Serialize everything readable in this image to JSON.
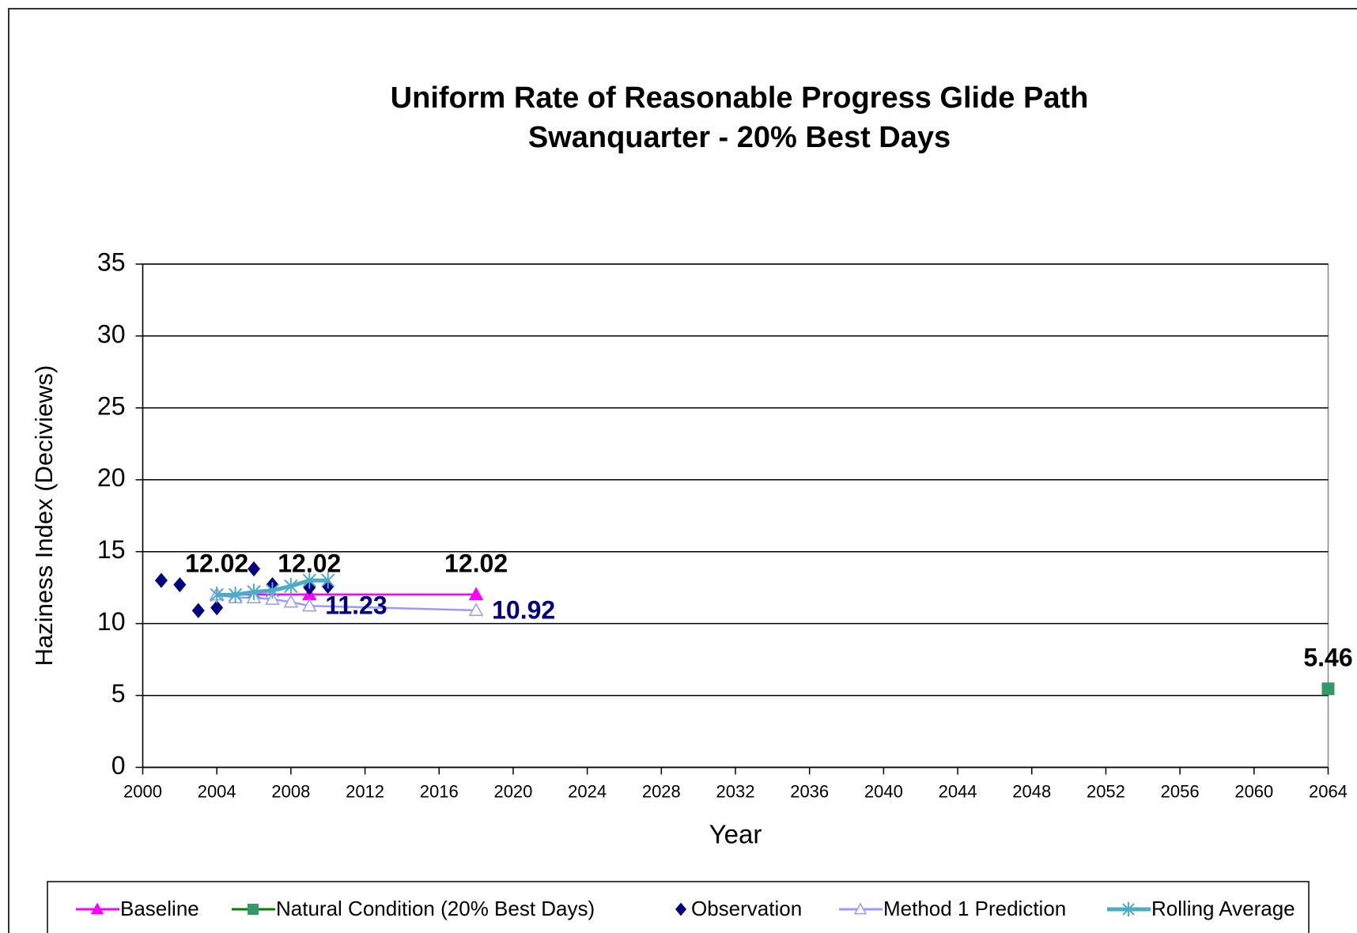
{
  "chart_data": {
    "type": "line",
    "title": [
      "Uniform Rate of Reasonable Progress Glide Path",
      "Swanquarter - 20% Best Days"
    ],
    "x_label": "Year",
    "y_label": "Haziness Index (Deciviews)",
    "xlim": [
      2000,
      2064
    ],
    "xticks": [
      2000,
      2004,
      2008,
      2012,
      2016,
      2020,
      2024,
      2028,
      2032,
      2036,
      2040,
      2044,
      2048,
      2052,
      2056,
      2060,
      2064
    ],
    "ylim": [
      0,
      35
    ],
    "yticks": [
      0,
      5,
      10,
      15,
      20,
      25,
      30,
      35
    ],
    "grid": true,
    "legend": "bottom",
    "series": [
      {
        "name": "Baseline",
        "color": "#ff00ff",
        "marker_color": "#ff00ff",
        "marker": "triangle",
        "line": true,
        "x": [
          2004,
          2009,
          2018
        ],
        "values": [
          12.02,
          12.02,
          12.02
        ],
        "value_labels": [
          "12.02",
          "12.02",
          "12.02"
        ],
        "label_color": "#000000",
        "label_position": "above"
      },
      {
        "name": "Natural Condition (20% Best Days)",
        "color": "#008000",
        "marker_color": "#339966",
        "marker": "square",
        "line": true,
        "x": [
          2064
        ],
        "values": [
          5.46
        ],
        "value_labels": [
          "5.46"
        ],
        "label_color": "#000000",
        "label_position": "above"
      },
      {
        "name": "Observation",
        "color": "#000080",
        "marker_color": "#000080",
        "marker": "diamond",
        "line": false,
        "x": [
          2001,
          2002,
          2003,
          2004,
          2006,
          2007,
          2009,
          2010
        ],
        "values": [
          13.0,
          12.7,
          10.9,
          11.1,
          13.8,
          12.7,
          12.5,
          12.6
        ]
      },
      {
        "name": "Method 1 Prediction",
        "color": "#9999ff",
        "marker_color": "#9999ff",
        "marker": "open-triangle",
        "line": true,
        "x": [
          2004,
          2005,
          2006,
          2007,
          2008,
          2009,
          2018
        ],
        "values": [
          12.0,
          11.8,
          11.8,
          11.7,
          11.5,
          11.23,
          10.92
        ],
        "value_labels": [
          null,
          null,
          null,
          null,
          null,
          "11.23",
          "10.92"
        ],
        "label_color": "#000080",
        "label_position": "right"
      },
      {
        "name": "Rolling Average",
        "color": "#4bacc6",
        "marker_color": "#4bacc6",
        "marker": "asterisk",
        "line": true,
        "x": [
          2004,
          2005,
          2006,
          2007,
          2008,
          2009,
          2010
        ],
        "values": [
          12.0,
          12.0,
          12.2,
          12.3,
          12.6,
          13.0,
          13.0
        ]
      }
    ]
  }
}
